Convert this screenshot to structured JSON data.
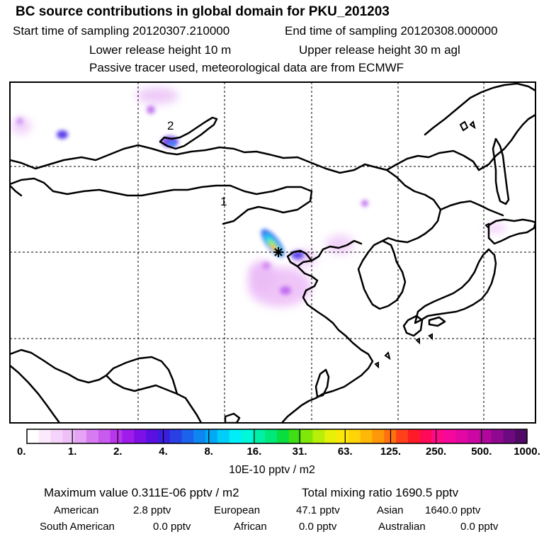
{
  "header": {
    "title": "BC  source contributions in global domain for PKU_201203",
    "start_sampling": "Start time of sampling 20120307.210000",
    "end_sampling": "End time of sampling 20120308.000000",
    "lower_release": "Lower release height   10 m",
    "upper_release": "Upper release height   30 m    agl",
    "tracer_note": "Passive tracer used, meteorological data are from ECMWF"
  },
  "map": {
    "labels": [
      "2",
      "1"
    ],
    "marker": "receptor-star"
  },
  "colorbar": {
    "ticks": [
      "0.",
      "1.",
      "2.",
      "4.",
      "8.",
      "16.",
      "31.",
      "63.",
      "125.",
      "250.",
      "500.",
      "1000."
    ],
    "unit": "10E-10 pptv / m2",
    "colors": [
      "#ffffff",
      "#fbe9fc",
      "#f6d3fa",
      "#efbff7",
      "#e4a3f4",
      "#d77bf0",
      "#c95aee",
      "#b836ec",
      "#9f1cea",
      "#7d10e6",
      "#5a10e0",
      "#3a1ede",
      "#2a3fe4",
      "#1c63ec",
      "#0e86f2",
      "#00a9f6",
      "#00cdf8",
      "#00eef8",
      "#00f7d8",
      "#00f0a8",
      "#00e878",
      "#08de40",
      "#40de14",
      "#80e808",
      "#b8ee08",
      "#e6f008",
      "#fce808",
      "#ffd408",
      "#ffb808",
      "#ff9808",
      "#ff7010",
      "#ff4018",
      "#ff1a28",
      "#ff0a58",
      "#ff0a88",
      "#f6089c",
      "#e408a2",
      "#cc08a4",
      "#b0089c",
      "#900890",
      "#6e0a80",
      "#500a66"
    ]
  },
  "footer": {
    "max_value": "Maximum value  0.311E-06 pptv / m2",
    "total_mixing": "Total mixing ratio     1690.5 pptv",
    "american_label": "American",
    "american_value": "2.8 pptv",
    "european_label": "European",
    "european_value": "47.1 pptv",
    "asian_label": "Asian",
    "asian_value": "1640.0 pptv",
    "south_american_label": "South American",
    "south_american_value": "0.0 pptv",
    "african_label": "African",
    "african_value": "0.0 pptv",
    "australian_label": "Australian",
    "australian_value": "0.0 pptv"
  }
}
